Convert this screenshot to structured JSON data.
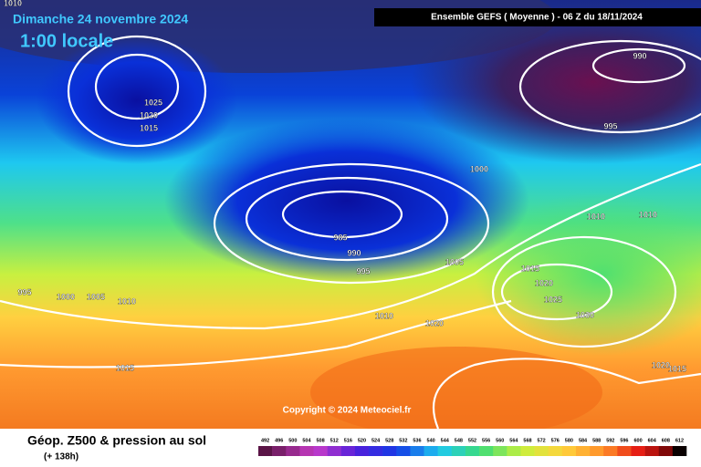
{
  "header": {
    "date": "Dimanche 24 novembre 2024",
    "local_time": "1:00 locale",
    "model": "Ensemble GEFS  ( Moyenne )  -  06 Z du 18/11/2024"
  },
  "map": {
    "isobar_labels": [
      "1010",
      "1025",
      "1020",
      "1015",
      "990",
      "995",
      "1000",
      "985",
      "990",
      "995",
      "1005",
      "1010",
      "1010",
      "1015",
      "1020",
      "1025",
      "1030",
      "995",
      "1000",
      "1005",
      "1010",
      "1010",
      "1020",
      "1015",
      "1020",
      "1015"
    ],
    "copyright": "Copyright © 2024 Meteociel.fr"
  },
  "footer": {
    "title": "Géop. Z500 & pression au sol",
    "subtitle": "(+ 138h)"
  },
  "legend": {
    "values": [
      492,
      496,
      500,
      504,
      508,
      512,
      516,
      520,
      524,
      528,
      532,
      536,
      540,
      544,
      548,
      552,
      556,
      560,
      564,
      568,
      572,
      576,
      580,
      584,
      588,
      592,
      596,
      600,
      604,
      608,
      612
    ]
  }
}
